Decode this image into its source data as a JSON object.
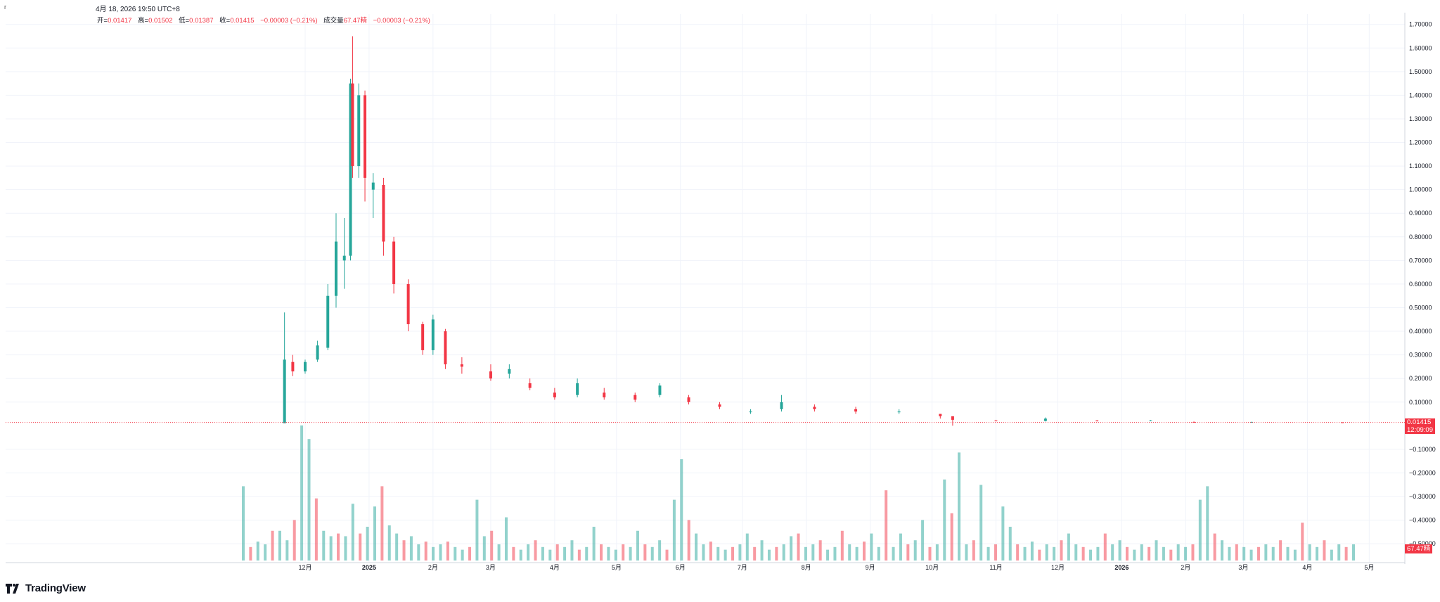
{
  "header": {
    "ticker": "r",
    "datetime": "4月 18, 2026 19:50 UTC+8"
  },
  "legend": {
    "open_label": "开=",
    "open": "0.01417",
    "high_label": "高=",
    "high": "0.01502",
    "low_label": "低=",
    "low": "0.01387",
    "close_label": "收=",
    "close": "0.01415",
    "change": "−0.00003 (−0.21%)",
    "volume_label": "成交量",
    "volume": "67.47精",
    "volume_change": "−0.00003 (−0.21%)"
  },
  "badges": {
    "last_price": "0.01415",
    "countdown": "12:09:09",
    "last_volume": "67.47精"
  },
  "branding": {
    "logo_text": "TradingView"
  },
  "colors": {
    "up": "#26a69a",
    "down": "#f23645",
    "grid": "#f0f3fa",
    "text": "#131722"
  },
  "chart_data": {
    "type": "candlestick",
    "y_axis": {
      "ticks": [
        "1.70000",
        "1.60000",
        "1.50000",
        "1.40000",
        "1.30000",
        "1.20000",
        "1.10000",
        "1.00000",
        "0.90000",
        "0.80000",
        "0.70000",
        "0.60000",
        "0.50000",
        "0.40000",
        "0.30000",
        "0.20000",
        "0.10000",
        "−0.10000",
        "−0.20000",
        "−0.30000",
        "−0.40000",
        "−0.50000"
      ],
      "range": [
        -0.6,
        1.72
      ]
    },
    "x_axis": {
      "ticks": [
        "12月",
        "2025",
        "2月",
        "3月",
        "4月",
        "5月",
        "6月",
        "7月",
        "8月",
        "9月",
        "10月",
        "11月",
        "12月",
        "2026",
        "2月",
        "3月",
        "4月",
        "5月"
      ]
    },
    "price_series": {
      "name": "price",
      "points": [
        {
          "date": "2024-11-21",
          "open": 0.01,
          "high": 0.48,
          "low": 0.01,
          "close": 0.28
        },
        {
          "date": "2024-11-25",
          "open": 0.27,
          "high": 0.3,
          "low": 0.21,
          "close": 0.23
        },
        {
          "date": "2024-12-01",
          "open": 0.23,
          "high": 0.28,
          "low": 0.22,
          "close": 0.27
        },
        {
          "date": "2024-12-07",
          "open": 0.28,
          "high": 0.36,
          "low": 0.27,
          "close": 0.34
        },
        {
          "date": "2024-12-12",
          "open": 0.33,
          "high": 0.6,
          "low": 0.32,
          "close": 0.55
        },
        {
          "date": "2024-12-16",
          "open": 0.55,
          "high": 0.9,
          "low": 0.5,
          "close": 0.78
        },
        {
          "date": "2024-12-20",
          "open": 0.7,
          "high": 0.88,
          "low": 0.58,
          "close": 0.72
        },
        {
          "date": "2024-12-23",
          "open": 0.72,
          "high": 1.47,
          "low": 0.7,
          "close": 1.45
        },
        {
          "date": "2024-12-24",
          "open": 1.45,
          "high": 1.65,
          "low": 1.05,
          "close": 1.1
        },
        {
          "date": "2024-12-27",
          "open": 1.1,
          "high": 1.45,
          "low": 1.05,
          "close": 1.4
        },
        {
          "date": "2024-12-30",
          "open": 1.4,
          "high": 1.42,
          "low": 0.95,
          "close": 1.05
        },
        {
          "date": "2025-01-03",
          "open": 1.0,
          "high": 1.07,
          "low": 0.88,
          "close": 1.03
        },
        {
          "date": "2025-01-08",
          "open": 1.02,
          "high": 1.05,
          "low": 0.72,
          "close": 0.78
        },
        {
          "date": "2025-01-13",
          "open": 0.78,
          "high": 0.8,
          "low": 0.56,
          "close": 0.6
        },
        {
          "date": "2025-01-20",
          "open": 0.6,
          "high": 0.62,
          "low": 0.4,
          "close": 0.43
        },
        {
          "date": "2025-01-27",
          "open": 0.43,
          "high": 0.44,
          "low": 0.3,
          "close": 0.32
        },
        {
          "date": "2025-02-01",
          "open": 0.32,
          "high": 0.47,
          "low": 0.3,
          "close": 0.45
        },
        {
          "date": "2025-02-07",
          "open": 0.4,
          "high": 0.41,
          "low": 0.24,
          "close": 0.26
        },
        {
          "date": "2025-02-15",
          "open": 0.26,
          "high": 0.29,
          "low": 0.22,
          "close": 0.25
        },
        {
          "date": "2025-03-01",
          "open": 0.23,
          "high": 0.26,
          "low": 0.19,
          "close": 0.2
        },
        {
          "date": "2025-03-10",
          "open": 0.22,
          "high": 0.26,
          "low": 0.2,
          "close": 0.24
        },
        {
          "date": "2025-03-20",
          "open": 0.18,
          "high": 0.2,
          "low": 0.15,
          "close": 0.16
        },
        {
          "date": "2025-04-01",
          "open": 0.14,
          "high": 0.16,
          "low": 0.11,
          "close": 0.12
        },
        {
          "date": "2025-04-12",
          "open": 0.13,
          "high": 0.2,
          "low": 0.12,
          "close": 0.18
        },
        {
          "date": "2025-04-25",
          "open": 0.14,
          "high": 0.16,
          "low": 0.11,
          "close": 0.12
        },
        {
          "date": "2025-05-10",
          "open": 0.13,
          "high": 0.14,
          "low": 0.1,
          "close": 0.11
        },
        {
          "date": "2025-05-22",
          "open": 0.13,
          "high": 0.18,
          "low": 0.12,
          "close": 0.17
        },
        {
          "date": "2025-06-05",
          "open": 0.12,
          "high": 0.13,
          "low": 0.09,
          "close": 0.1
        },
        {
          "date": "2025-06-20",
          "open": 0.09,
          "high": 0.1,
          "low": 0.07,
          "close": 0.08
        },
        {
          "date": "2025-07-05",
          "open": 0.06,
          "high": 0.07,
          "low": 0.05,
          "close": 0.06
        },
        {
          "date": "2025-07-20",
          "open": 0.07,
          "high": 0.13,
          "low": 0.06,
          "close": 0.1
        },
        {
          "date": "2025-08-05",
          "open": 0.08,
          "high": 0.09,
          "low": 0.06,
          "close": 0.07
        },
        {
          "date": "2025-08-25",
          "open": 0.07,
          "high": 0.08,
          "low": 0.05,
          "close": 0.06
        },
        {
          "date": "2025-09-15",
          "open": 0.06,
          "high": 0.07,
          "low": 0.05,
          "close": 0.06
        },
        {
          "date": "2025-10-05",
          "open": 0.05,
          "high": 0.05,
          "low": 0.03,
          "close": 0.04
        },
        {
          "date": "2025-10-11",
          "open": 0.04,
          "high": 0.04,
          "low": 0.0,
          "close": 0.025
        },
        {
          "date": "2025-11-01",
          "open": 0.022,
          "high": 0.025,
          "low": 0.018,
          "close": 0.02
        },
        {
          "date": "2025-11-25",
          "open": 0.02,
          "high": 0.035,
          "low": 0.018,
          "close": 0.03
        },
        {
          "date": "2025-12-20",
          "open": 0.022,
          "high": 0.024,
          "low": 0.018,
          "close": 0.02
        },
        {
          "date": "2026-01-15",
          "open": 0.021,
          "high": 0.024,
          "low": 0.02,
          "close": 0.022
        },
        {
          "date": "2026-02-05",
          "open": 0.016,
          "high": 0.018,
          "low": 0.014,
          "close": 0.015
        },
        {
          "date": "2026-03-05",
          "open": 0.015,
          "high": 0.017,
          "low": 0.013,
          "close": 0.016
        },
        {
          "date": "2026-04-18",
          "open": 0.01417,
          "high": 0.01502,
          "low": 0.01387,
          "close": 0.01415
        }
      ]
    },
    "volume_series": {
      "name": "成交量",
      "relative_values": [
        0.55,
        0.1,
        0.14,
        0.12,
        0.22,
        0.22,
        0.15,
        0.3,
        1.0,
        0.9,
        0.46,
        0.22,
        0.18,
        0.2,
        0.18,
        0.42,
        0.2,
        0.25,
        0.4,
        0.55,
        0.26,
        0.2,
        0.15,
        0.18,
        0.12,
        0.14,
        0.1,
        0.12,
        0.14,
        0.1,
        0.08,
        0.1,
        0.45,
        0.18,
        0.22,
        0.12,
        0.32,
        0.1,
        0.08,
        0.12,
        0.15,
        0.1,
        0.08,
        0.12,
        0.1,
        0.15,
        0.08,
        0.1,
        0.25,
        0.12,
        0.1,
        0.08,
        0.12,
        0.1,
        0.22,
        0.12,
        0.1,
        0.15,
        0.08,
        0.45,
        0.75,
        0.3,
        0.2,
        0.12,
        0.14,
        0.1,
        0.08,
        0.1,
        0.12,
        0.2,
        0.1,
        0.15,
        0.08,
        0.1,
        0.12,
        0.18,
        0.2,
        0.1,
        0.12,
        0.15,
        0.08,
        0.1,
        0.22,
        0.12,
        0.1,
        0.14,
        0.2,
        0.1,
        0.52,
        0.1,
        0.2,
        0.12,
        0.15,
        0.3,
        0.1,
        0.12,
        0.6,
        0.35,
        0.8,
        0.12,
        0.15,
        0.56,
        0.1,
        0.12,
        0.4,
        0.25,
        0.12,
        0.1,
        0.14,
        0.08,
        0.12,
        0.1,
        0.15,
        0.2,
        0.12,
        0.1,
        0.08,
        0.1,
        0.2,
        0.12,
        0.15,
        0.1,
        0.08,
        0.12,
        0.1,
        0.15,
        0.1,
        0.08,
        0.12,
        0.1,
        0.12,
        0.45,
        0.55,
        0.2,
        0.15,
        0.1,
        0.12,
        0.1,
        0.08,
        0.1,
        0.12,
        0.1,
        0.15,
        0.1,
        0.08,
        0.28,
        0.12,
        0.1,
        0.15,
        0.08,
        0.12,
        0.1,
        0.12
      ]
    }
  }
}
